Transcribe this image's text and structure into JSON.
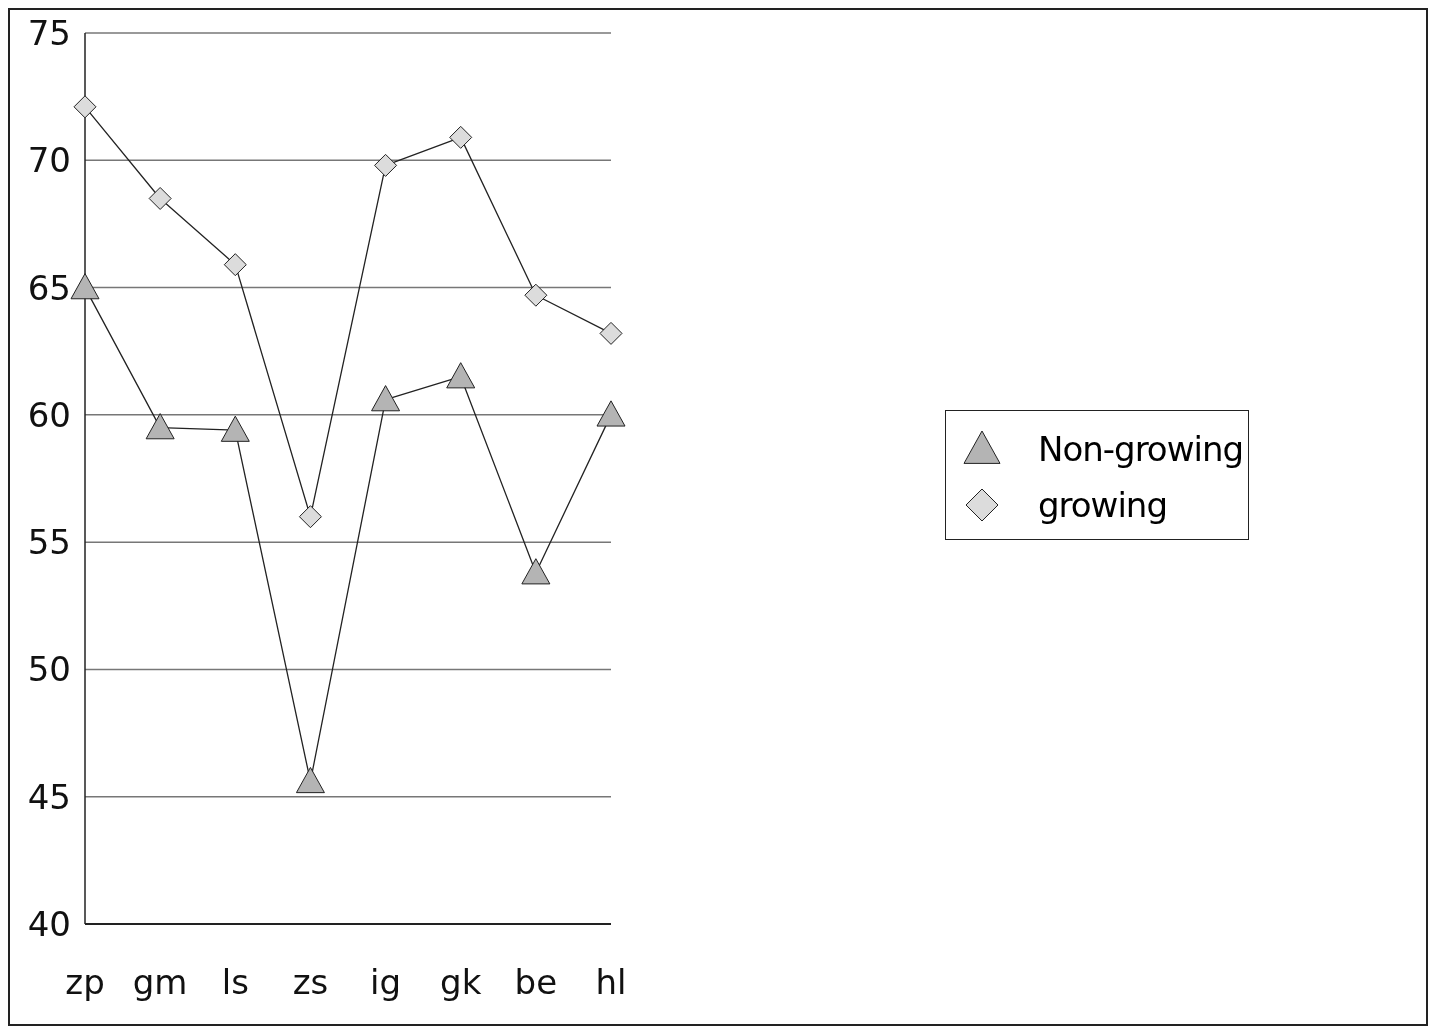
{
  "chart_data": {
    "type": "line",
    "categories": [
      "zp",
      "gm",
      "ls",
      "zs",
      "ig",
      "gk",
      "be",
      "hl"
    ],
    "series": [
      {
        "name": "Non-growing",
        "color": "#b4b4b4",
        "marker": "triangle",
        "values": [
          65.0,
          59.5,
          59.4,
          45.6,
          60.6,
          61.5,
          53.8,
          60.0
        ]
      },
      {
        "name": "growing",
        "color": "#dcdcdc",
        "marker": "diamond",
        "values": [
          72.1,
          68.5,
          65.9,
          56.0,
          69.8,
          70.9,
          64.7,
          63.2
        ]
      }
    ],
    "ylim": [
      40,
      75
    ],
    "yticks": [
      40,
      45,
      50,
      55,
      60,
      65,
      70,
      75
    ],
    "grid": "y",
    "legend": "right",
    "line_style": "solid"
  }
}
